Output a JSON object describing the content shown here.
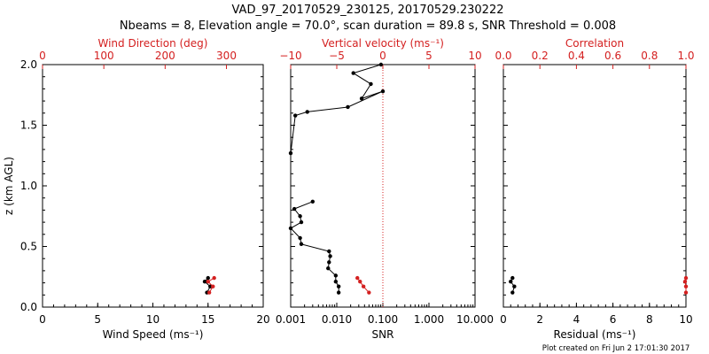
{
  "title_line1": "VAD_97_20170529_230125, 20170529.230222",
  "title_line2": "Nbeams = 8, Elevation angle = 70.0°, scan duration = 89.8 s, SNR Threshold = 0.008",
  "footer": "Plot created on Fri Jun  2 17:01:30 2017",
  "colors": {
    "axis": "#000000",
    "accent": "#d42020",
    "line": "#000000"
  },
  "chart_data": [
    {
      "type": "line",
      "panel": "wind",
      "ylabel": "z (km AGL)",
      "ylim": [
        0,
        2.0
      ],
      "y_ticks": [
        "0.0",
        "0.5",
        "1.0",
        "1.5",
        "2.0"
      ],
      "bottom_axis": {
        "label": "Wind Speed (ms⁻¹)",
        "range": [
          0,
          20
        ],
        "ticks": [
          "0",
          "5",
          "10",
          "15",
          "20"
        ]
      },
      "top_axis": {
        "label": "Wind Direction (deg)",
        "range": [
          0,
          360
        ],
        "ticks": [
          "0",
          "100",
          "200",
          "300"
        ]
      },
      "series": [
        {
          "axis": "bottom",
          "color": "#000000",
          "points": [
            [
              14.9,
              0.12
            ],
            [
              15.2,
              0.17
            ],
            [
              14.7,
              0.21
            ],
            [
              15.0,
              0.24
            ]
          ]
        },
        {
          "axis": "top",
          "color": "#d42020",
          "points": [
            [
              272,
              0.12
            ],
            [
              278,
              0.17
            ],
            [
              270,
              0.21
            ],
            [
              280,
              0.24
            ]
          ]
        }
      ]
    },
    {
      "type": "line",
      "panel": "vertical-velocity",
      "ylim": [
        0,
        2.0
      ],
      "bottom_axis": {
        "label": "SNR",
        "scale": "log",
        "range": [
          0.001,
          10
        ],
        "ticks": [
          "0.001",
          "0.010",
          "0.100",
          "1.000",
          "10.000"
        ]
      },
      "top_axis": {
        "label": "Vertical velocity (ms⁻¹)",
        "range": [
          -10,
          10
        ],
        "ticks": [
          "−10",
          "−5",
          "0",
          "5",
          "10"
        ]
      },
      "reference_line": {
        "axis": "top",
        "value": 0
      },
      "series": [
        {
          "axis": "bottom",
          "color": "#000000",
          "points": [
            [
              0.011,
              0.12
            ],
            [
              0.011,
              0.17
            ],
            [
              0.0095,
              0.21
            ],
            [
              0.0095,
              0.26
            ],
            [
              0.0065,
              0.32
            ],
            [
              0.0068,
              0.37
            ],
            [
              0.0072,
              0.42
            ],
            [
              0.0068,
              0.46
            ],
            [
              0.0017,
              0.52
            ],
            [
              0.0016,
              0.57
            ],
            [
              0.001,
              0.65
            ],
            [
              0.0017,
              0.7
            ],
            [
              0.0016,
              0.75
            ],
            [
              0.0012,
              0.81
            ],
            [
              0.003,
              0.87
            ]
          ]
        },
        {
          "axis": "top",
          "color": "#000000",
          "points": [
            [
              -10,
              1.27
            ],
            [
              -9.5,
              1.58
            ],
            [
              -8.2,
              1.61
            ],
            [
              -3.8,
              1.65
            ],
            [
              0,
              1.78
            ],
            [
              -2.3,
              1.72
            ],
            [
              -1.3,
              1.84
            ],
            [
              -3.2,
              1.93
            ],
            [
              -0.2,
              2.0
            ]
          ]
        },
        {
          "axis": "bottom",
          "color": "#d42020",
          "points": [
            [
              0.05,
              0.12
            ],
            [
              0.038,
              0.17
            ],
            [
              0.032,
              0.21
            ],
            [
              0.028,
              0.24
            ]
          ]
        }
      ]
    },
    {
      "type": "line",
      "panel": "correlation",
      "ylim": [
        0,
        2.0
      ],
      "bottom_axis": {
        "label": "Residual (ms⁻¹)",
        "range": [
          0,
          10
        ],
        "ticks": [
          "0",
          "2",
          "4",
          "6",
          "8",
          "10"
        ]
      },
      "top_axis": {
        "label": "Correlation",
        "range": [
          0,
          1.0
        ],
        "ticks": [
          "0.0",
          "0.2",
          "0.4",
          "0.6",
          "0.8",
          "1.0"
        ]
      },
      "series": [
        {
          "axis": "bottom",
          "color": "#000000",
          "points": [
            [
              0.5,
              0.12
            ],
            [
              0.6,
              0.17
            ],
            [
              0.4,
              0.21
            ],
            [
              0.5,
              0.24
            ]
          ]
        },
        {
          "axis": "top",
          "color": "#d42020",
          "points": [
            [
              1.0,
              0.12
            ],
            [
              1.0,
              0.17
            ],
            [
              0.995,
              0.21
            ],
            [
              1.0,
              0.24
            ]
          ]
        }
      ]
    }
  ]
}
